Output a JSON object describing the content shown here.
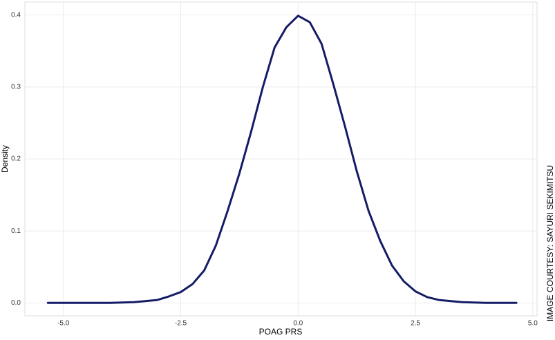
{
  "chart_data": {
    "type": "line",
    "x_label": "POAG PRS",
    "y_label": "Density",
    "annotation": "IMAGE COURTESY: SAYURI SEKIMITSU",
    "x": [
      -5.33,
      -4.5,
      -4,
      -3.5,
      -3,
      -2.75,
      -2.5,
      -2.25,
      -2,
      -1.75,
      -1.5,
      -1.25,
      -1,
      -0.75,
      -0.5,
      -0.25,
      0,
      0.25,
      0.5,
      0.75,
      1,
      1.25,
      1.5,
      1.75,
      2,
      2.25,
      2.5,
      2.75,
      3,
      3.5,
      4,
      4.65
    ],
    "series": [
      {
        "color": "#141c66",
        "values": [
          0,
          0,
          0,
          0.001,
          0.004,
          0.009,
          0.015,
          0.026,
          0.045,
          0.08,
          0.128,
          0.18,
          0.238,
          0.3,
          0.355,
          0.383,
          0.399,
          0.39,
          0.36,
          0.304,
          0.245,
          0.183,
          0.128,
          0.086,
          0.052,
          0.03,
          0.016,
          0.008,
          0.004,
          0.001,
          0,
          0
        ]
      }
    ],
    "xlim": [
      -5.82,
      5.09
    ],
    "ylim": [
      -0.018,
      0.418
    ],
    "xticks": [
      {
        "value": -5,
        "label": "-5.0"
      },
      -2.5,
      {
        "value": 0,
        "label": "0.0"
      },
      2.5,
      {
        "value": 5,
        "label": "5.0"
      }
    ],
    "yticks": [
      {
        "value": 0,
        "label": "0.0"
      },
      0.1,
      0.2,
      0.3,
      0.4
    ],
    "grid": true
  }
}
